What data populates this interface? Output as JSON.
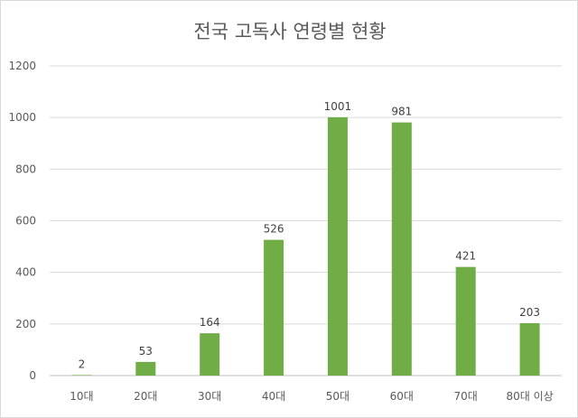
{
  "chart_data": {
    "type": "bar",
    "title": "전국 고독사 연령별 현황",
    "categories": [
      "10대",
      "20대",
      "30대",
      "40대",
      "50대",
      "60대",
      "70대",
      "80대 이상"
    ],
    "values": [
      2,
      53,
      164,
      526,
      1001,
      981,
      421,
      203
    ],
    "data_labels": [
      "2",
      "53",
      "164",
      "526",
      "1001",
      "981",
      "421",
      "203"
    ],
    "ylim": [
      0,
      1200
    ],
    "yticks": [
      "0",
      "200",
      "400",
      "600",
      "800",
      "1000",
      "1200"
    ],
    "grid": true,
    "legend": "none",
    "bar_color": "#70ad47"
  }
}
